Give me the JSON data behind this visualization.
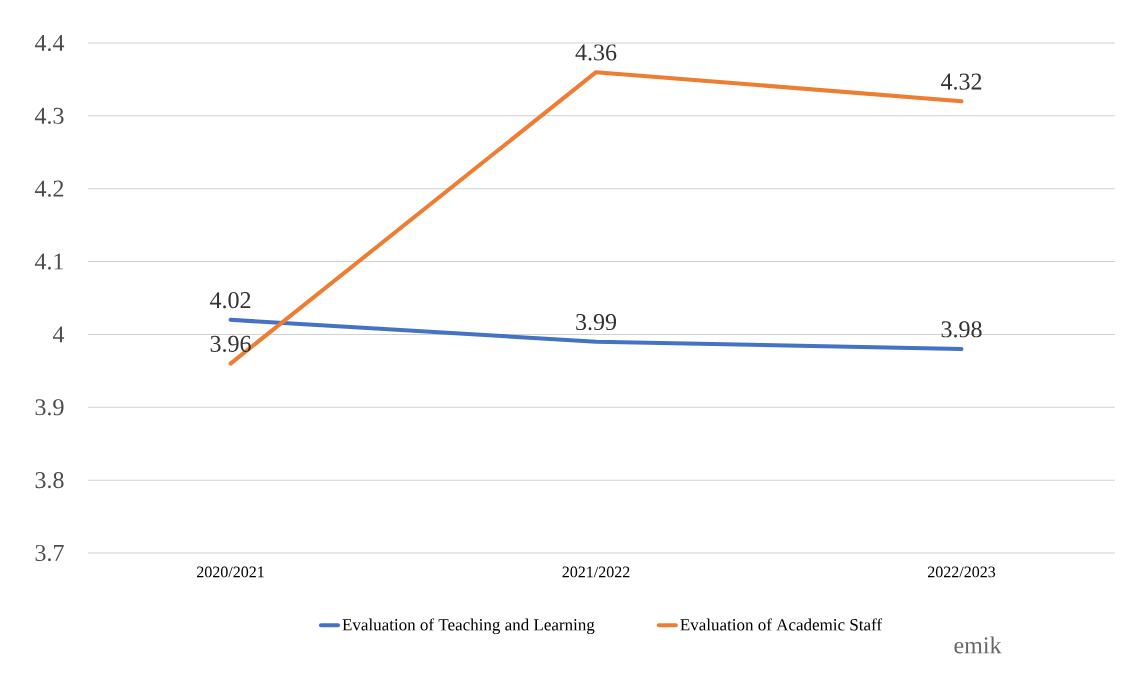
{
  "chart_data": {
    "type": "line",
    "categories": [
      "2020/2021",
      "2021/2022",
      "2022/2023"
    ],
    "series": [
      {
        "name": "Evaluation of Teaching and Learning",
        "color": "#4472c4",
        "values": [
          4.02,
          3.99,
          3.98
        ]
      },
      {
        "name": "Evaluation of Academic Staff",
        "color": "#ed7d31",
        "values": [
          3.96,
          4.36,
          4.32
        ]
      }
    ],
    "ylim": [
      3.7,
      4.4
    ],
    "yticks": [
      3.7,
      3.8,
      3.9,
      4,
      4.1,
      4.2,
      4.3,
      4.4
    ],
    "grid": "y",
    "legend": "bottom",
    "data_labels": true,
    "marker": "none",
    "line_style": "solid",
    "annotations": [
      "emik"
    ]
  }
}
